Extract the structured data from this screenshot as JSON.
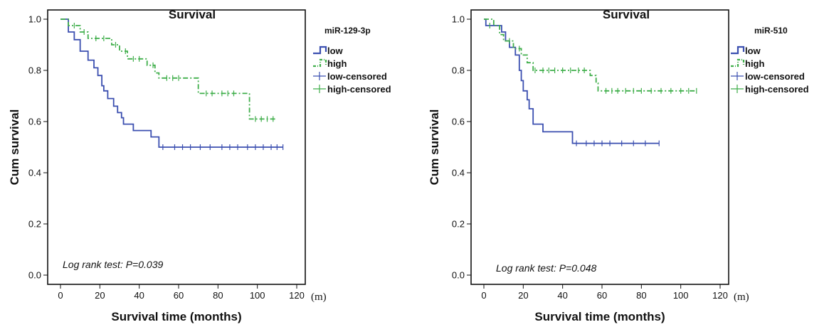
{
  "chart_data": [
    {
      "type": "line",
      "title": "Survival",
      "xlabel": "Survival time (months)",
      "ylabel": "Cum survival",
      "x_unit": "(m)",
      "xlim": [
        0,
        120
      ],
      "ylim": [
        0,
        1.0
      ],
      "x_ticks": [
        "0",
        "20",
        "40",
        "60",
        "80",
        "100",
        "120"
      ],
      "y_ticks": [
        "0.0",
        "0.2",
        "0.4",
        "0.6",
        "0.8",
        "1.0"
      ],
      "legend_title": "miR-129-3p",
      "legend": [
        "low",
        "high",
        "low-censored",
        "high-censored"
      ],
      "annotation": "Log rank test: P=0.039",
      "colors": {
        "low": "#3b4fb0",
        "high": "#3fae4a"
      },
      "series": [
        {
          "name": "low",
          "style": "solid",
          "steps": [
            [
              0,
              1.0
            ],
            [
              4,
              0.95
            ],
            [
              7,
              0.92
            ],
            [
              10,
              0.875
            ],
            [
              14,
              0.84
            ],
            [
              17,
              0.81
            ],
            [
              19,
              0.78
            ],
            [
              21,
              0.74
            ],
            [
              22,
              0.72
            ],
            [
              24,
              0.69
            ],
            [
              27,
              0.66
            ],
            [
              29,
              0.635
            ],
            [
              31,
              0.615
            ],
            [
              32,
              0.59
            ],
            [
              37,
              0.565
            ],
            [
              44,
              0.565
            ],
            [
              46,
              0.54
            ],
            [
              50,
              0.5
            ],
            [
              113,
              0.5
            ]
          ],
          "censored": [
            [
              52,
              0.5
            ],
            [
              58,
              0.5
            ],
            [
              62,
              0.5
            ],
            [
              66,
              0.5
            ],
            [
              71,
              0.5
            ],
            [
              76,
              0.5
            ],
            [
              82,
              0.5
            ],
            [
              86,
              0.5
            ],
            [
              90,
              0.5
            ],
            [
              95,
              0.5
            ],
            [
              99,
              0.5
            ],
            [
              103,
              0.5
            ],
            [
              107,
              0.5
            ],
            [
              110,
              0.5
            ],
            [
              113,
              0.5
            ]
          ]
        },
        {
          "name": "high",
          "style": "dashdot",
          "steps": [
            [
              0,
              1.0
            ],
            [
              4,
              0.975
            ],
            [
              10,
              0.95
            ],
            [
              14,
              0.925
            ],
            [
              26,
              0.9
            ],
            [
              30,
              0.875
            ],
            [
              34,
              0.845
            ],
            [
              44,
              0.82
            ],
            [
              48,
              0.79
            ],
            [
              50,
              0.77
            ],
            [
              64,
              0.77
            ],
            [
              70,
              0.71
            ],
            [
              95,
              0.71
            ],
            [
              96,
              0.61
            ],
            [
              110,
              0.61
            ]
          ],
          "censored": [
            [
              7,
              0.975
            ],
            [
              12,
              0.95
            ],
            [
              18,
              0.925
            ],
            [
              22,
              0.925
            ],
            [
              28,
              0.9
            ],
            [
              33,
              0.875
            ],
            [
              37,
              0.845
            ],
            [
              40,
              0.845
            ],
            [
              47,
              0.82
            ],
            [
              54,
              0.77
            ],
            [
              57,
              0.77
            ],
            [
              60,
              0.77
            ],
            [
              74,
              0.71
            ],
            [
              77,
              0.71
            ],
            [
              82,
              0.71
            ],
            [
              85,
              0.71
            ],
            [
              88,
              0.71
            ],
            [
              99,
              0.61
            ],
            [
              102,
              0.61
            ],
            [
              105,
              0.61
            ],
            [
              108,
              0.61
            ]
          ]
        }
      ]
    },
    {
      "type": "line",
      "title": "Survival",
      "xlabel": "Survival time (months)",
      "ylabel": "Cum survival",
      "x_unit": "(m)",
      "xlim": [
        0,
        120
      ],
      "ylim": [
        0,
        1.0
      ],
      "x_ticks": [
        "0",
        "20",
        "40",
        "60",
        "80",
        "100",
        "120"
      ],
      "y_ticks": [
        "0.0",
        "0.2",
        "0.4",
        "0.6",
        "0.8",
        "1.0"
      ],
      "legend_title": "miR-510",
      "legend": [
        "low",
        "high",
        "low-censored",
        "high-censored"
      ],
      "annotation": "Log rank test: P=0.048",
      "colors": {
        "low": "#3b4fb0",
        "high": "#3fae4a"
      },
      "series": [
        {
          "name": "low",
          "style": "solid",
          "steps": [
            [
              0,
              1.0
            ],
            [
              1,
              0.975
            ],
            [
              9,
              0.95
            ],
            [
              11,
              0.915
            ],
            [
              13,
              0.89
            ],
            [
              16,
              0.86
            ],
            [
              18,
              0.8
            ],
            [
              19,
              0.76
            ],
            [
              20,
              0.72
            ],
            [
              22,
              0.685
            ],
            [
              23,
              0.65
            ],
            [
              25,
              0.59
            ],
            [
              30,
              0.56
            ],
            [
              45,
              0.515
            ],
            [
              89,
              0.515
            ]
          ],
          "censored": [
            [
              47,
              0.515
            ],
            [
              52,
              0.515
            ],
            [
              56,
              0.515
            ],
            [
              60,
              0.515
            ],
            [
              64,
              0.515
            ],
            [
              70,
              0.515
            ],
            [
              76,
              0.515
            ],
            [
              82,
              0.515
            ],
            [
              89,
              0.515
            ]
          ]
        },
        {
          "name": "high",
          "style": "dashdot",
          "steps": [
            [
              0,
              1.0
            ],
            [
              5,
              0.975
            ],
            [
              8,
              0.94
            ],
            [
              10,
              0.915
            ],
            [
              15,
              0.885
            ],
            [
              19,
              0.86
            ],
            [
              22,
              0.83
            ],
            [
              25,
              0.8
            ],
            [
              54,
              0.78
            ],
            [
              57,
              0.75
            ],
            [
              58,
              0.72
            ],
            [
              108,
              0.72
            ]
          ],
          "censored": [
            [
              3,
              0.975
            ],
            [
              13,
              0.915
            ],
            [
              18,
              0.885
            ],
            [
              26,
              0.8
            ],
            [
              30,
              0.8
            ],
            [
              33,
              0.8
            ],
            [
              36,
              0.8
            ],
            [
              40,
              0.8
            ],
            [
              44,
              0.8
            ],
            [
              48,
              0.8
            ],
            [
              51,
              0.8
            ],
            [
              62,
              0.72
            ],
            [
              65,
              0.72
            ],
            [
              68,
              0.72
            ],
            [
              72,
              0.72
            ],
            [
              76,
              0.72
            ],
            [
              80,
              0.72
            ],
            [
              85,
              0.72
            ],
            [
              90,
              0.72
            ],
            [
              95,
              0.72
            ],
            [
              100,
              0.72
            ],
            [
              104,
              0.72
            ],
            [
              108,
              0.72
            ]
          ]
        }
      ]
    }
  ]
}
